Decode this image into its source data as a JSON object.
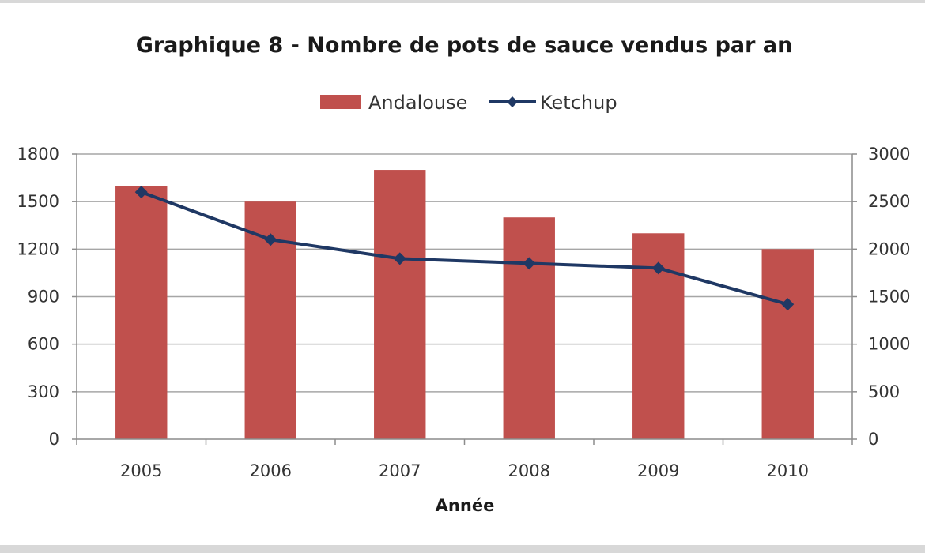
{
  "chart_data": {
    "type": "bar",
    "title": "Graphique 8 - Nombre de pots de sauce vendus par an",
    "xlabel": "Année",
    "ylabel": "",
    "y2label": "",
    "categories": [
      "2005",
      "2006",
      "2007",
      "2008",
      "2009",
      "2010"
    ],
    "ylim": [
      0,
      1800
    ],
    "y_ticks": [
      "0",
      "300",
      "600",
      "900",
      "1200",
      "1500",
      "1800"
    ],
    "y2lim": [
      0,
      3000
    ],
    "y2_ticks": [
      "0",
      "500",
      "1000",
      "1500",
      "2000",
      "2500",
      "3000"
    ],
    "grid": true,
    "legend_position": "top",
    "series": [
      {
        "name": "Andalouse",
        "kind": "bar",
        "axis": "left",
        "color": "#c0504d",
        "values": [
          1600,
          1500,
          1700,
          1400,
          1300,
          1200
        ]
      },
      {
        "name": "Ketchup",
        "kind": "line",
        "axis": "right",
        "color": "#1f3864",
        "values": [
          2600,
          2100,
          1900,
          1850,
          1800,
          1420
        ]
      }
    ]
  }
}
